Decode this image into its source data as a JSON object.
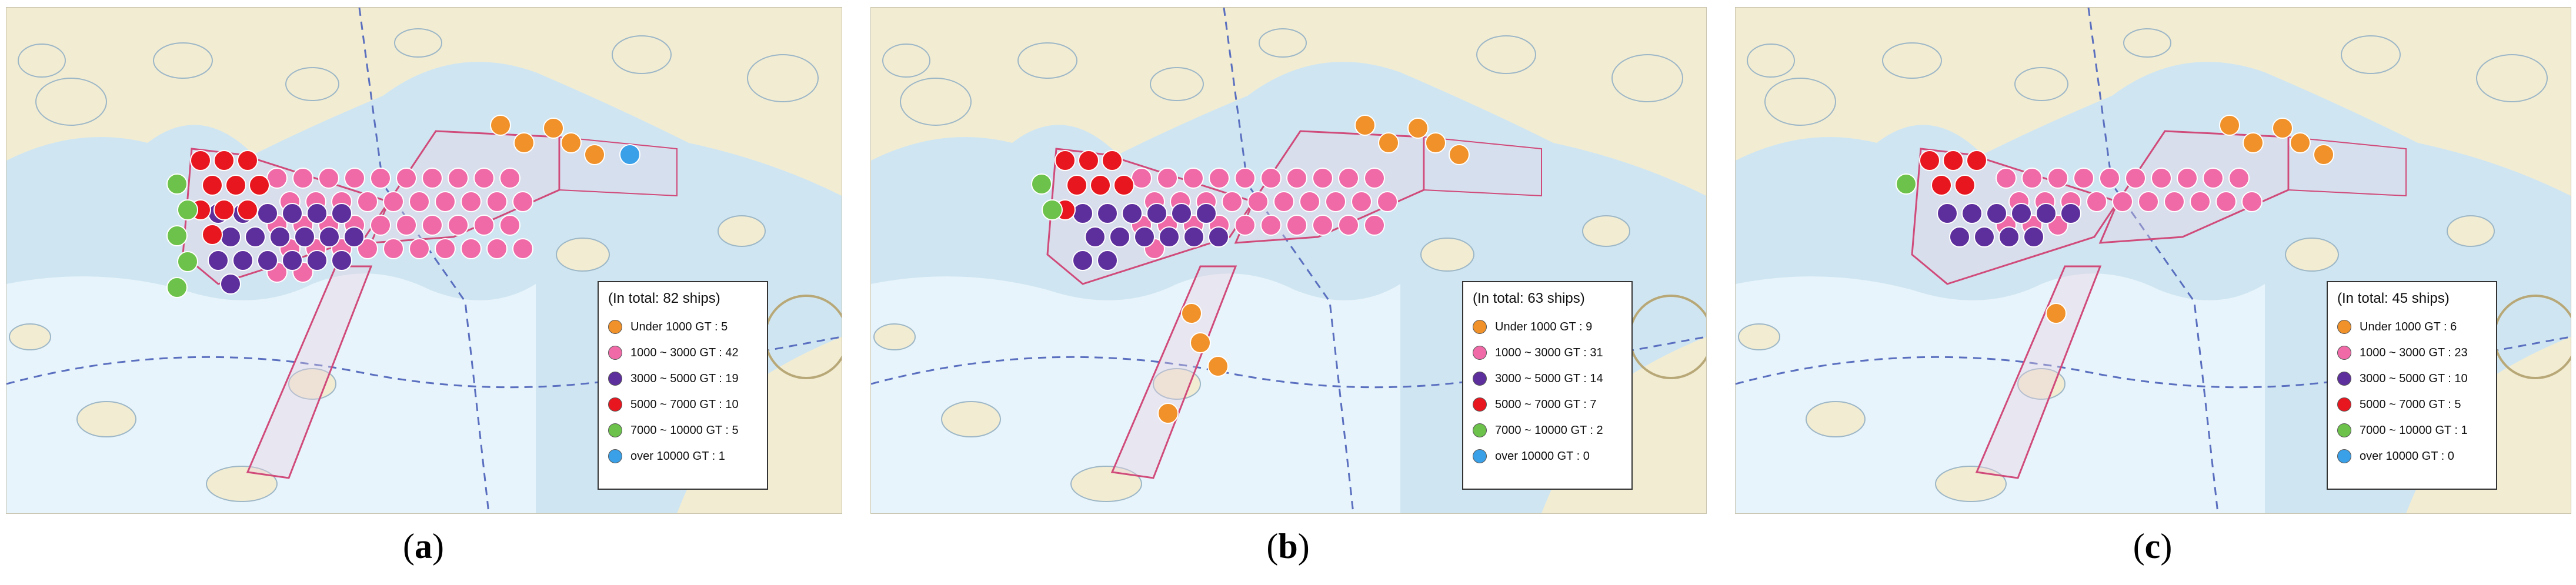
{
  "colors": {
    "under_1000": "#f0912a",
    "c1000_3000": "#f06aa8",
    "c3000_5000": "#5d2f9c",
    "c5000_7000": "#e8171f",
    "c7000_10000": "#6cc24a",
    "over_10000": "#3aa0e8",
    "land": "#f2ecd2",
    "water": "#cfe6f2",
    "deep_water": "#e8f4fb"
  },
  "panels": [
    {
      "caption_letter": "a",
      "legend": {
        "total": "(In total: 82 ships)",
        "items": [
          {
            "label": "Under 1000 GT : 5",
            "color_key": "under_1000"
          },
          {
            "label": "1000 ~ 3000 GT : 42",
            "color_key": "c1000_3000"
          },
          {
            "label": "3000 ~ 5000 GT : 19",
            "color_key": "c3000_5000"
          },
          {
            "label": "5000 ~ 7000 GT : 10",
            "color_key": "c5000_7000"
          },
          {
            "label": "7000 ~ 10000 GT : 5",
            "color_key": "c7000_10000"
          },
          {
            "label": "over 10000 GT : 1",
            "color_key": "over_10000"
          }
        ]
      },
      "counts": [
        5,
        42,
        19,
        10,
        5,
        1
      ]
    },
    {
      "caption_letter": "b",
      "legend": {
        "total": "(In total: 63 ships)",
        "items": [
          {
            "label": "Under 1000 GT : 9",
            "color_key": "under_1000"
          },
          {
            "label": "1000 ~ 3000 GT : 31",
            "color_key": "c1000_3000"
          },
          {
            "label": "3000 ~ 5000 GT : 14",
            "color_key": "c3000_5000"
          },
          {
            "label": "5000 ~ 7000 GT : 7",
            "color_key": "c5000_7000"
          },
          {
            "label": "7000 ~ 10000 GT : 2",
            "color_key": "c7000_10000"
          },
          {
            "label": "over 10000 GT : 0",
            "color_key": "over_10000"
          }
        ]
      },
      "counts": [
        9,
        31,
        14,
        7,
        2,
        0
      ]
    },
    {
      "caption_letter": "c",
      "legend": {
        "total": "(In total: 45 ships)",
        "items": [
          {
            "label": "Under 1000 GT : 6",
            "color_key": "under_1000"
          },
          {
            "label": "1000 ~ 3000 GT : 23",
            "color_key": "c1000_3000"
          },
          {
            "label": "3000 ~ 5000 GT : 10",
            "color_key": "c3000_5000"
          },
          {
            "label": "5000 ~ 7000 GT : 5",
            "color_key": "c5000_7000"
          },
          {
            "label": "7000 ~ 10000 GT : 1",
            "color_key": "c7000_10000"
          },
          {
            "label": "over 10000 GT : 0",
            "color_key": "over_10000"
          }
        ]
      },
      "counts": [
        6,
        23,
        10,
        5,
        1,
        0
      ]
    }
  ]
}
